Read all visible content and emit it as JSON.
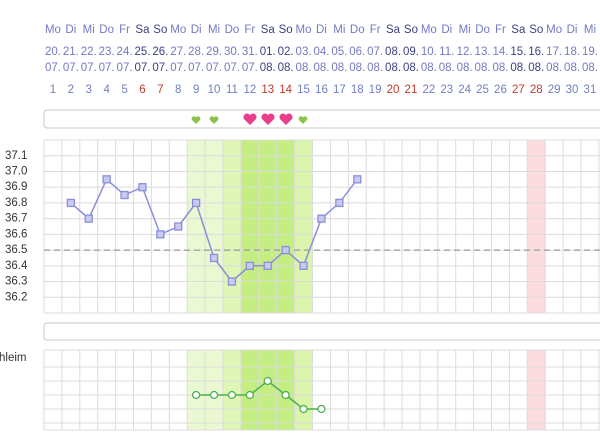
{
  "header": {
    "weekdays": [
      "Mo",
      "Di",
      "Mi",
      "Do",
      "Fr",
      "Sa",
      "So",
      "Mo",
      "Di",
      "Mi",
      "Do",
      "Fr",
      "Sa",
      "So",
      "Mo",
      "Di",
      "Mi",
      "Do",
      "Fr",
      "Sa",
      "So",
      "Mo",
      "Di",
      "Mi",
      "Do",
      "Fr",
      "Sa",
      "So",
      "Mo",
      "Di",
      "Mi"
    ],
    "dates": [
      "20.",
      "21.",
      "22.",
      "23.",
      "24.",
      "25.",
      "26.",
      "27.",
      "28.",
      "29.",
      "30.",
      "31.",
      "01.",
      "02.",
      "03.",
      "04.",
      "05.",
      "06.",
      "07.",
      "08.",
      "09.",
      "10.",
      "11.",
      "12.",
      "13.",
      "14.",
      "15.",
      "16.",
      "17.",
      "18.",
      "19."
    ],
    "months": [
      "07.",
      "07.",
      "07.",
      "07.",
      "07.",
      "07.",
      "07.",
      "07.",
      "07.",
      "07.",
      "07.",
      "07.",
      "08.",
      "08.",
      "08.",
      "08.",
      "08.",
      "08.",
      "08.",
      "08.",
      "08.",
      "08.",
      "08.",
      "08.",
      "08.",
      "08.",
      "08.",
      "08.",
      "08.",
      "08.",
      "08."
    ],
    "cycle_days": [
      1,
      2,
      3,
      4,
      5,
      6,
      7,
      8,
      9,
      10,
      11,
      12,
      13,
      14,
      15,
      16,
      17,
      18,
      19,
      20,
      21,
      22,
      23,
      24,
      25,
      26,
      27,
      28,
      29,
      30,
      31
    ],
    "weekend_columns": [
      6,
      7,
      13,
      14,
      20,
      21,
      27,
      28
    ],
    "text_color": "#7479c4",
    "weekend_text_color": "#3d4180",
    "cycle_day_color": "#6f7fc2",
    "weekend_cycle_day_color": "#c0392b"
  },
  "bands": [
    {
      "start": 9,
      "end": 10,
      "color": "#ebf9d2"
    },
    {
      "start": 11,
      "end": 11,
      "color": "#dff6b6"
    },
    {
      "start": 12,
      "end": 14,
      "color": "#c4ed82"
    },
    {
      "start": 15,
      "end": 15,
      "color": "#dcf5ad"
    },
    {
      "start": 28,
      "end": 28,
      "color": "#fbdde0"
    }
  ],
  "chart_data": [
    {
      "type": "line",
      "x": [
        2,
        3,
        4,
        5,
        6,
        7,
        8,
        9,
        10,
        11,
        12,
        13,
        14,
        15,
        16,
        17,
        18
      ],
      "values": [
        36.8,
        36.7,
        36.95,
        36.85,
        36.9,
        36.6,
        36.65,
        36.8,
        36.45,
        36.3,
        36.4,
        36.4,
        36.5,
        36.4,
        36.7,
        36.8,
        36.95
      ],
      "color": "#8a8fd8",
      "ylim": [
        36.1,
        37.2
      ],
      "yticks": [
        36.2,
        36.3,
        36.4,
        36.5,
        36.6,
        36.7,
        36.8,
        36.9,
        {
          "value": 37.0,
          "label": "37.0"
        },
        37.1
      ],
      "coverline": 36.5,
      "grid": true
    },
    {
      "type": "line",
      "label": "hleim",
      "x": [
        9,
        10,
        11,
        12,
        13,
        14,
        15,
        16
      ],
      "values": [
        2,
        2,
        2,
        2,
        3,
        2,
        1,
        1
      ],
      "color": "#4caf50",
      "ylim": [
        0,
        5
      ]
    }
  ]
}
